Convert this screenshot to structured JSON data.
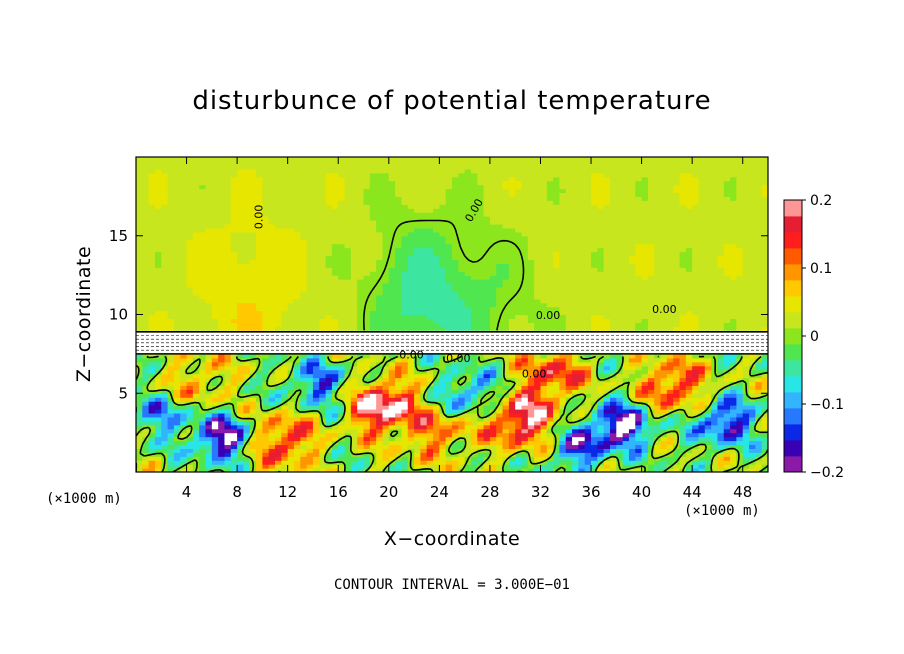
{
  "chart_data": {
    "type": "heatmap",
    "title": "disturbunce of potential temperature",
    "xlabel": "X−coordinate",
    "ylabel": "Z−coordinate",
    "x_unit_label": "(×1000 m)",
    "footer": "CONTOUR INTERVAL = 3.000E−01",
    "xlim": [
      0,
      50
    ],
    "ylim": [
      0,
      20
    ],
    "x_ticks": [
      4,
      8,
      12,
      16,
      20,
      24,
      28,
      32,
      36,
      40,
      44,
      48
    ],
    "x_tick_labels": [
      "4",
      "8",
      "12",
      "16",
      "20",
      "24",
      "28",
      "32",
      "36",
      "40",
      "44",
      "48"
    ],
    "y_ticks": [
      5,
      10,
      15
    ],
    "y_tick_labels": [
      "5",
      "10",
      "15"
    ],
    "colorbar": {
      "range": [
        -0.2,
        0.2
      ],
      "ticks": [
        0.2,
        0.1,
        0,
        -0.1,
        -0.2
      ],
      "tick_labels": [
        "0.2",
        "0.1",
        "0",
        "−0.1",
        "−0.2"
      ],
      "colors": [
        "#8b1aa8",
        "#3a00b4",
        "#0a28e6",
        "#2878ff",
        "#32b4ff",
        "#28e6e6",
        "#3ce6a0",
        "#50e650",
        "#8ce61e",
        "#c8e61e",
        "#e6e600",
        "#ffc800",
        "#ff9600",
        "#ff5a00",
        "#ff1e1e",
        "#e61e32",
        "#ff9696"
      ]
    },
    "contour_labels": [
      "0.00",
      "0.00",
      "0.00",
      "0.00",
      "0.00",
      "0.00",
      "0.00"
    ],
    "layer": {
      "z_bottom": 7.5,
      "z_top": 8.9
    },
    "warm_anomalies": [
      {
        "x": 19.5,
        "z": 4.2,
        "amp": 0.22
      },
      {
        "x": 30.5,
        "z": 3.3,
        "amp": 0.2
      },
      {
        "x": 11.5,
        "z": 2.0,
        "amp": 0.16
      },
      {
        "x": 42.5,
        "z": 5.5,
        "amp": 0.15
      },
      {
        "x": 33.0,
        "z": 6.2,
        "amp": 0.14
      },
      {
        "x": 5.0,
        "z": 5.8,
        "amp": 0.08
      },
      {
        "x": 24.0,
        "z": 2.5,
        "amp": 0.1
      }
    ],
    "cold_anomalies": [
      {
        "x": 7.0,
        "z": 2.2,
        "amp": -0.2
      },
      {
        "x": 38.5,
        "z": 3.0,
        "amp": -0.2
      },
      {
        "x": 14.5,
        "z": 5.6,
        "amp": -0.13
      },
      {
        "x": 46.5,
        "z": 3.2,
        "amp": -0.17
      },
      {
        "x": 26.5,
        "z": 5.0,
        "amp": -0.12
      },
      {
        "x": 35.0,
        "z": 1.6,
        "amp": -0.14
      },
      {
        "x": 2.0,
        "z": 3.6,
        "amp": -0.1
      }
    ],
    "upper_anomalies": [
      {
        "x": 22.5,
        "z": 11.0,
        "amp": -0.07
      },
      {
        "x": 9.0,
        "z": 11.0,
        "amp": 0.03
      },
      {
        "x": 28.0,
        "z": 10.5,
        "amp": -0.03
      }
    ]
  }
}
